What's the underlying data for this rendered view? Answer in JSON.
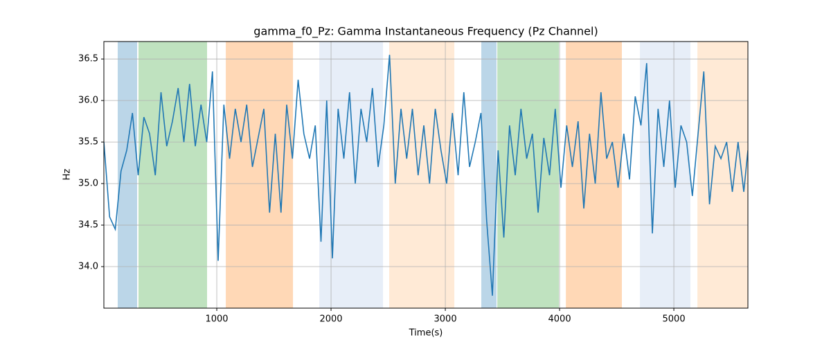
{
  "chart_data": {
    "type": "line",
    "title": "gamma_f0_Pz: Gamma Instantaneous Frequency (Pz Channel)",
    "x_label": "Time(s)",
    "y_label": "Hz",
    "xlim": [
      12,
      5648
    ],
    "ylim": [
      33.5,
      36.71
    ],
    "xticks": [
      1000,
      2000,
      3000,
      4000,
      5000
    ],
    "yticks": [
      {
        "value": 34,
        "label": "34.0"
      },
      34.5,
      {
        "value": 35,
        "label": "35.0"
      },
      35.5,
      {
        "value": 36,
        "label": "36.0"
      },
      36.5
    ],
    "grid": true,
    "spans": [
      {
        "start": 133,
        "end": 303,
        "color": "#1f77b4"
      },
      {
        "start": 315,
        "end": 915,
        "color": "#2ca02c"
      },
      {
        "start": 1079,
        "end": 1667,
        "color": "#ff7f0e"
      },
      {
        "start": 1897,
        "end": 2455,
        "color": "#aec7e8"
      },
      {
        "start": 2509,
        "end": 3079,
        "color": "#ffbb78"
      },
      {
        "start": 3315,
        "end": 3448,
        "color": "#1f77b4"
      },
      {
        "start": 3455,
        "end": 3994,
        "color": "#2ca02c"
      },
      {
        "start": 4055,
        "end": 4545,
        "color": "#ff7f0e"
      },
      {
        "start": 4703,
        "end": 5145,
        "color": "#aec7e8"
      },
      {
        "start": 5206,
        "end": 5648,
        "color": "#ffbb78"
      }
    ],
    "x": [
      12,
      62,
      112,
      162,
      212,
      262,
      312,
      362,
      412,
      462,
      512,
      562,
      612,
      662,
      712,
      762,
      812,
      862,
      912,
      962,
      1012,
      1062,
      1112,
      1162,
      1212,
      1262,
      1312,
      1362,
      1412,
      1462,
      1512,
      1562,
      1612,
      1662,
      1712,
      1762,
      1812,
      1862,
      1912,
      1962,
      2012,
      2062,
      2112,
      2162,
      2212,
      2262,
      2312,
      2362,
      2412,
      2462,
      2512,
      2562,
      2612,
      2662,
      2712,
      2762,
      2812,
      2862,
      2912,
      2962,
      3012,
      3062,
      3112,
      3162,
      3212,
      3262,
      3312,
      3362,
      3412,
      3462,
      3512,
      3562,
      3612,
      3662,
      3712,
      3762,
      3812,
      3862,
      3912,
      3962,
      4012,
      4062,
      4112,
      4162,
      4212,
      4262,
      4312,
      4362,
      4412,
      4462,
      4512,
      4562,
      4612,
      4662,
      4712,
      4762,
      4812,
      4862,
      4912,
      4962,
      5012,
      5062,
      5112,
      5162,
      5212,
      5262,
      5312,
      5362,
      5412,
      5462,
      5512,
      5562,
      5612,
      5648
    ],
    "series": [
      {
        "color": "#1f77b4",
        "values": [
          35.5,
          34.6,
          34.45,
          35.15,
          35.4,
          35.85,
          35.1,
          35.8,
          35.6,
          35.1,
          36.1,
          35.45,
          35.75,
          36.15,
          35.5,
          36.2,
          35.45,
          35.95,
          35.5,
          36.35,
          34.07,
          35.95,
          35.3,
          35.9,
          35.5,
          35.95,
          35.2,
          35.55,
          35.9,
          34.65,
          35.6,
          34.65,
          35.95,
          35.3,
          36.25,
          35.6,
          35.3,
          35.7,
          34.3,
          36.0,
          34.1,
          35.9,
          35.3,
          36.1,
          35.0,
          35.9,
          35.5,
          36.15,
          35.2,
          35.7,
          36.55,
          35.0,
          35.9,
          35.3,
          35.9,
          35.1,
          35.7,
          35.0,
          35.9,
          35.4,
          35.0,
          35.85,
          35.1,
          36.1,
          35.2,
          35.5,
          35.85,
          34.55,
          33.65,
          35.4,
          34.35,
          35.7,
          35.1,
          35.9,
          35.3,
          35.6,
          34.65,
          35.55,
          35.1,
          35.9,
          34.95,
          35.7,
          35.2,
          35.75,
          34.7,
          35.6,
          35.0,
          36.1,
          35.3,
          35.5,
          34.95,
          35.6,
          35.05,
          36.05,
          35.7,
          36.45,
          34.4,
          35.9,
          35.2,
          36.0,
          34.95,
          35.7,
          35.5,
          34.85,
          35.6,
          36.35,
          34.75,
          35.45,
          35.3,
          35.5,
          34.9,
          35.5,
          34.9,
          35.4
        ]
      }
    ]
  }
}
